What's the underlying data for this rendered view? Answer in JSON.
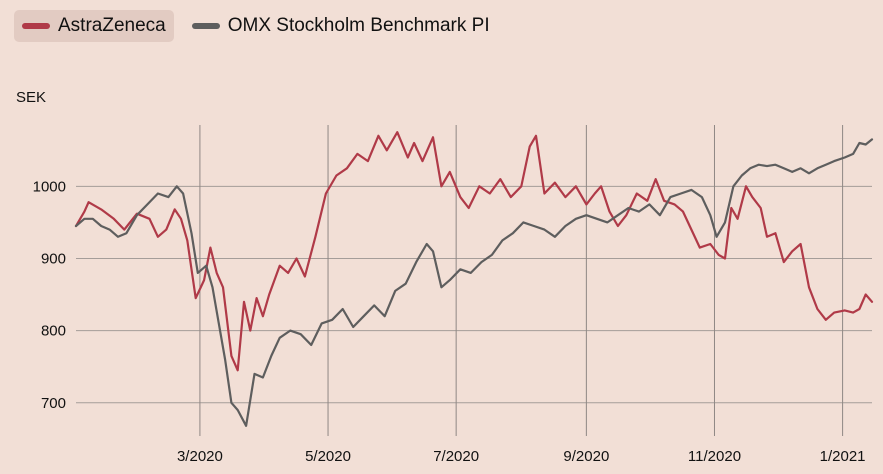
{
  "legend": {
    "items": [
      {
        "label": "AstraZeneca",
        "color": "#b03a48",
        "active": true
      },
      {
        "label": "OMX Stockholm Benchmark PI",
        "color": "#5e5e5e",
        "active": false
      }
    ]
  },
  "chart_data": {
    "type": "line",
    "ylabel": "SEK",
    "ylim": [
      665,
      1085
    ],
    "xlim": [
      "2020-01-02",
      "2021-01-15"
    ],
    "yticks": [
      700,
      800,
      900,
      1000
    ],
    "xticks": [
      {
        "label": "3/2020",
        "date": "2020-03-01"
      },
      {
        "label": "5/2020",
        "date": "2020-05-01"
      },
      {
        "label": "7/2020",
        "date": "2020-07-01"
      },
      {
        "label": "9/2020",
        "date": "2020-09-01"
      },
      {
        "label": "11/2020",
        "date": "2020-11-01"
      },
      {
        "label": "1/2021",
        "date": "2021-01-01"
      }
    ],
    "grid": {
      "horizontal": true,
      "vertical": true
    },
    "legend_position": "top-left",
    "series": [
      {
        "name": "AstraZeneca",
        "color": "#b03a48",
        "points": [
          [
            "2020-01-02",
            945
          ],
          [
            "2020-01-06",
            965
          ],
          [
            "2020-01-08",
            978
          ],
          [
            "2020-01-14",
            968
          ],
          [
            "2020-01-20",
            955
          ],
          [
            "2020-01-25",
            940
          ],
          [
            "2020-01-31",
            962
          ],
          [
            "2020-02-06",
            955
          ],
          [
            "2020-02-10",
            930
          ],
          [
            "2020-02-14",
            940
          ],
          [
            "2020-02-18",
            968
          ],
          [
            "2020-02-21",
            955
          ],
          [
            "2020-02-24",
            925
          ],
          [
            "2020-02-28",
            845
          ],
          [
            "2020-03-03",
            870
          ],
          [
            "2020-03-06",
            915
          ],
          [
            "2020-03-09",
            880
          ],
          [
            "2020-03-12",
            860
          ],
          [
            "2020-03-16",
            765
          ],
          [
            "2020-03-19",
            745
          ],
          [
            "2020-03-22",
            840
          ],
          [
            "2020-03-25",
            800
          ],
          [
            "2020-03-28",
            845
          ],
          [
            "2020-03-31",
            820
          ],
          [
            "2020-04-03",
            850
          ],
          [
            "2020-04-08",
            890
          ],
          [
            "2020-04-12",
            880
          ],
          [
            "2020-04-16",
            900
          ],
          [
            "2020-04-20",
            875
          ],
          [
            "2020-04-25",
            930
          ],
          [
            "2020-04-30",
            990
          ],
          [
            "2020-05-05",
            1015
          ],
          [
            "2020-05-10",
            1025
          ],
          [
            "2020-05-15",
            1045
          ],
          [
            "2020-05-20",
            1035
          ],
          [
            "2020-05-25",
            1070
          ],
          [
            "2020-05-29",
            1050
          ],
          [
            "2020-06-03",
            1075
          ],
          [
            "2020-06-08",
            1040
          ],
          [
            "2020-06-11",
            1060
          ],
          [
            "2020-06-15",
            1035
          ],
          [
            "2020-06-20",
            1068
          ],
          [
            "2020-06-24",
            1000
          ],
          [
            "2020-06-28",
            1020
          ],
          [
            "2020-07-03",
            985
          ],
          [
            "2020-07-07",
            970
          ],
          [
            "2020-07-12",
            1000
          ],
          [
            "2020-07-17",
            990
          ],
          [
            "2020-07-22",
            1010
          ],
          [
            "2020-07-27",
            985
          ],
          [
            "2020-08-01",
            1000
          ],
          [
            "2020-08-05",
            1055
          ],
          [
            "2020-08-08",
            1070
          ],
          [
            "2020-08-12",
            990
          ],
          [
            "2020-08-17",
            1005
          ],
          [
            "2020-08-22",
            985
          ],
          [
            "2020-08-27",
            1000
          ],
          [
            "2020-09-01",
            975
          ],
          [
            "2020-09-05",
            990
          ],
          [
            "2020-09-08",
            1000
          ],
          [
            "2020-09-12",
            965
          ],
          [
            "2020-09-16",
            945
          ],
          [
            "2020-09-20",
            960
          ],
          [
            "2020-09-25",
            990
          ],
          [
            "2020-09-30",
            980
          ],
          [
            "2020-10-04",
            1010
          ],
          [
            "2020-10-08",
            980
          ],
          [
            "2020-10-13",
            975
          ],
          [
            "2020-10-17",
            965
          ],
          [
            "2020-10-21",
            940
          ],
          [
            "2020-10-25",
            915
          ],
          [
            "2020-10-30",
            920
          ],
          [
            "2020-11-03",
            905
          ],
          [
            "2020-11-06",
            900
          ],
          [
            "2020-11-09",
            970
          ],
          [
            "2020-11-12",
            955
          ],
          [
            "2020-11-16",
            1000
          ],
          [
            "2020-11-19",
            985
          ],
          [
            "2020-11-23",
            970
          ],
          [
            "2020-11-26",
            930
          ],
          [
            "2020-11-30",
            935
          ],
          [
            "2020-12-04",
            895
          ],
          [
            "2020-12-08",
            910
          ],
          [
            "2020-12-12",
            920
          ],
          [
            "2020-12-16",
            860
          ],
          [
            "2020-12-20",
            830
          ],
          [
            "2020-12-24",
            815
          ],
          [
            "2020-12-28",
            825
          ],
          [
            "2021-01-02",
            828
          ],
          [
            "2021-01-06",
            825
          ],
          [
            "2021-01-09",
            830
          ],
          [
            "2021-01-12",
            850
          ],
          [
            "2021-01-15",
            840
          ]
        ]
      },
      {
        "name": "OMX Stockholm Benchmark PI",
        "color": "#5e5e5e",
        "points": [
          [
            "2020-01-02",
            945
          ],
          [
            "2020-01-06",
            955
          ],
          [
            "2020-01-10",
            955
          ],
          [
            "2020-01-14",
            945
          ],
          [
            "2020-01-18",
            940
          ],
          [
            "2020-01-22",
            930
          ],
          [
            "2020-01-26",
            935
          ],
          [
            "2020-01-31",
            960
          ],
          [
            "2020-02-05",
            975
          ],
          [
            "2020-02-10",
            990
          ],
          [
            "2020-02-15",
            985
          ],
          [
            "2020-02-19",
            1000
          ],
          [
            "2020-02-22",
            990
          ],
          [
            "2020-02-26",
            935
          ],
          [
            "2020-02-29",
            880
          ],
          [
            "2020-03-04",
            890
          ],
          [
            "2020-03-07",
            860
          ],
          [
            "2020-03-10",
            810
          ],
          [
            "2020-03-13",
            760
          ],
          [
            "2020-03-16",
            700
          ],
          [
            "2020-03-19",
            690
          ],
          [
            "2020-03-23",
            668
          ],
          [
            "2020-03-27",
            740
          ],
          [
            "2020-03-31",
            735
          ],
          [
            "2020-04-04",
            765
          ],
          [
            "2020-04-08",
            790
          ],
          [
            "2020-04-13",
            800
          ],
          [
            "2020-04-18",
            795
          ],
          [
            "2020-04-23",
            780
          ],
          [
            "2020-04-28",
            810
          ],
          [
            "2020-05-03",
            815
          ],
          [
            "2020-05-08",
            830
          ],
          [
            "2020-05-13",
            805
          ],
          [
            "2020-05-18",
            820
          ],
          [
            "2020-05-23",
            835
          ],
          [
            "2020-05-28",
            820
          ],
          [
            "2020-06-02",
            855
          ],
          [
            "2020-06-07",
            865
          ],
          [
            "2020-06-12",
            895
          ],
          [
            "2020-06-17",
            920
          ],
          [
            "2020-06-20",
            910
          ],
          [
            "2020-06-24",
            860
          ],
          [
            "2020-06-28",
            870
          ],
          [
            "2020-07-03",
            885
          ],
          [
            "2020-07-08",
            880
          ],
          [
            "2020-07-13",
            895
          ],
          [
            "2020-07-18",
            905
          ],
          [
            "2020-07-23",
            925
          ],
          [
            "2020-07-28",
            935
          ],
          [
            "2020-08-02",
            950
          ],
          [
            "2020-08-07",
            945
          ],
          [
            "2020-08-12",
            940
          ],
          [
            "2020-08-17",
            930
          ],
          [
            "2020-08-22",
            945
          ],
          [
            "2020-08-27",
            955
          ],
          [
            "2020-09-01",
            960
          ],
          [
            "2020-09-06",
            955
          ],
          [
            "2020-09-11",
            950
          ],
          [
            "2020-09-16",
            960
          ],
          [
            "2020-09-21",
            970
          ],
          [
            "2020-09-26",
            965
          ],
          [
            "2020-10-01",
            975
          ],
          [
            "2020-10-06",
            960
          ],
          [
            "2020-10-11",
            985
          ],
          [
            "2020-10-16",
            990
          ],
          [
            "2020-10-21",
            995
          ],
          [
            "2020-10-26",
            985
          ],
          [
            "2020-10-30",
            960
          ],
          [
            "2020-11-02",
            930
          ],
          [
            "2020-11-06",
            950
          ],
          [
            "2020-11-10",
            1000
          ],
          [
            "2020-11-14",
            1015
          ],
          [
            "2020-11-18",
            1025
          ],
          [
            "2020-11-22",
            1030
          ],
          [
            "2020-11-26",
            1028
          ],
          [
            "2020-11-30",
            1030
          ],
          [
            "2020-12-04",
            1025
          ],
          [
            "2020-12-08",
            1020
          ],
          [
            "2020-12-12",
            1025
          ],
          [
            "2020-12-16",
            1018
          ],
          [
            "2020-12-20",
            1025
          ],
          [
            "2020-12-24",
            1030
          ],
          [
            "2020-12-28",
            1035
          ],
          [
            "2021-01-02",
            1040
          ],
          [
            "2021-01-06",
            1045
          ],
          [
            "2021-01-09",
            1060
          ],
          [
            "2021-01-12",
            1058
          ],
          [
            "2021-01-15",
            1065
          ]
        ]
      }
    ]
  }
}
